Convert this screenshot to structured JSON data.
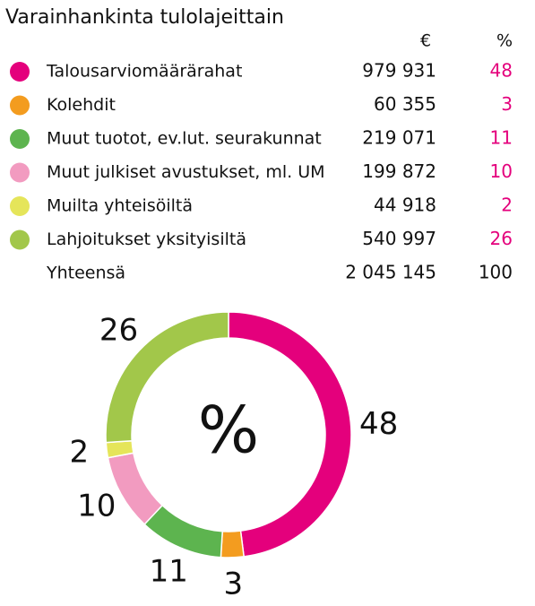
{
  "chart_data": {
    "type": "donut",
    "title": "Varainhankinta tulolajeittain",
    "column_headers": [
      "€",
      "%"
    ],
    "categories": [
      "Talousarviomäärärahat",
      "Kolehdit",
      "Muut tuotot, ev.lut. seurakunnat",
      "Muut julkiset avustukset, ml. UM",
      "Muilta yhteisöiltä",
      "Lahjoitukset yksityisiltä"
    ],
    "amounts": [
      "979 931",
      "60 355",
      "219 071",
      "199 872",
      "44 918",
      "540 997"
    ],
    "values": [
      48,
      3,
      11,
      10,
      2,
      26
    ],
    "colors": [
      "#e4007c",
      "#f39c1f",
      "#5db44f",
      "#f29bc0",
      "#e5e55a",
      "#a2c74a"
    ],
    "percent_color": "#e4007c",
    "total_label": "Yhteensä",
    "total_amount": "2 045 145",
    "total_percent": 100,
    "center_label": "%"
  }
}
